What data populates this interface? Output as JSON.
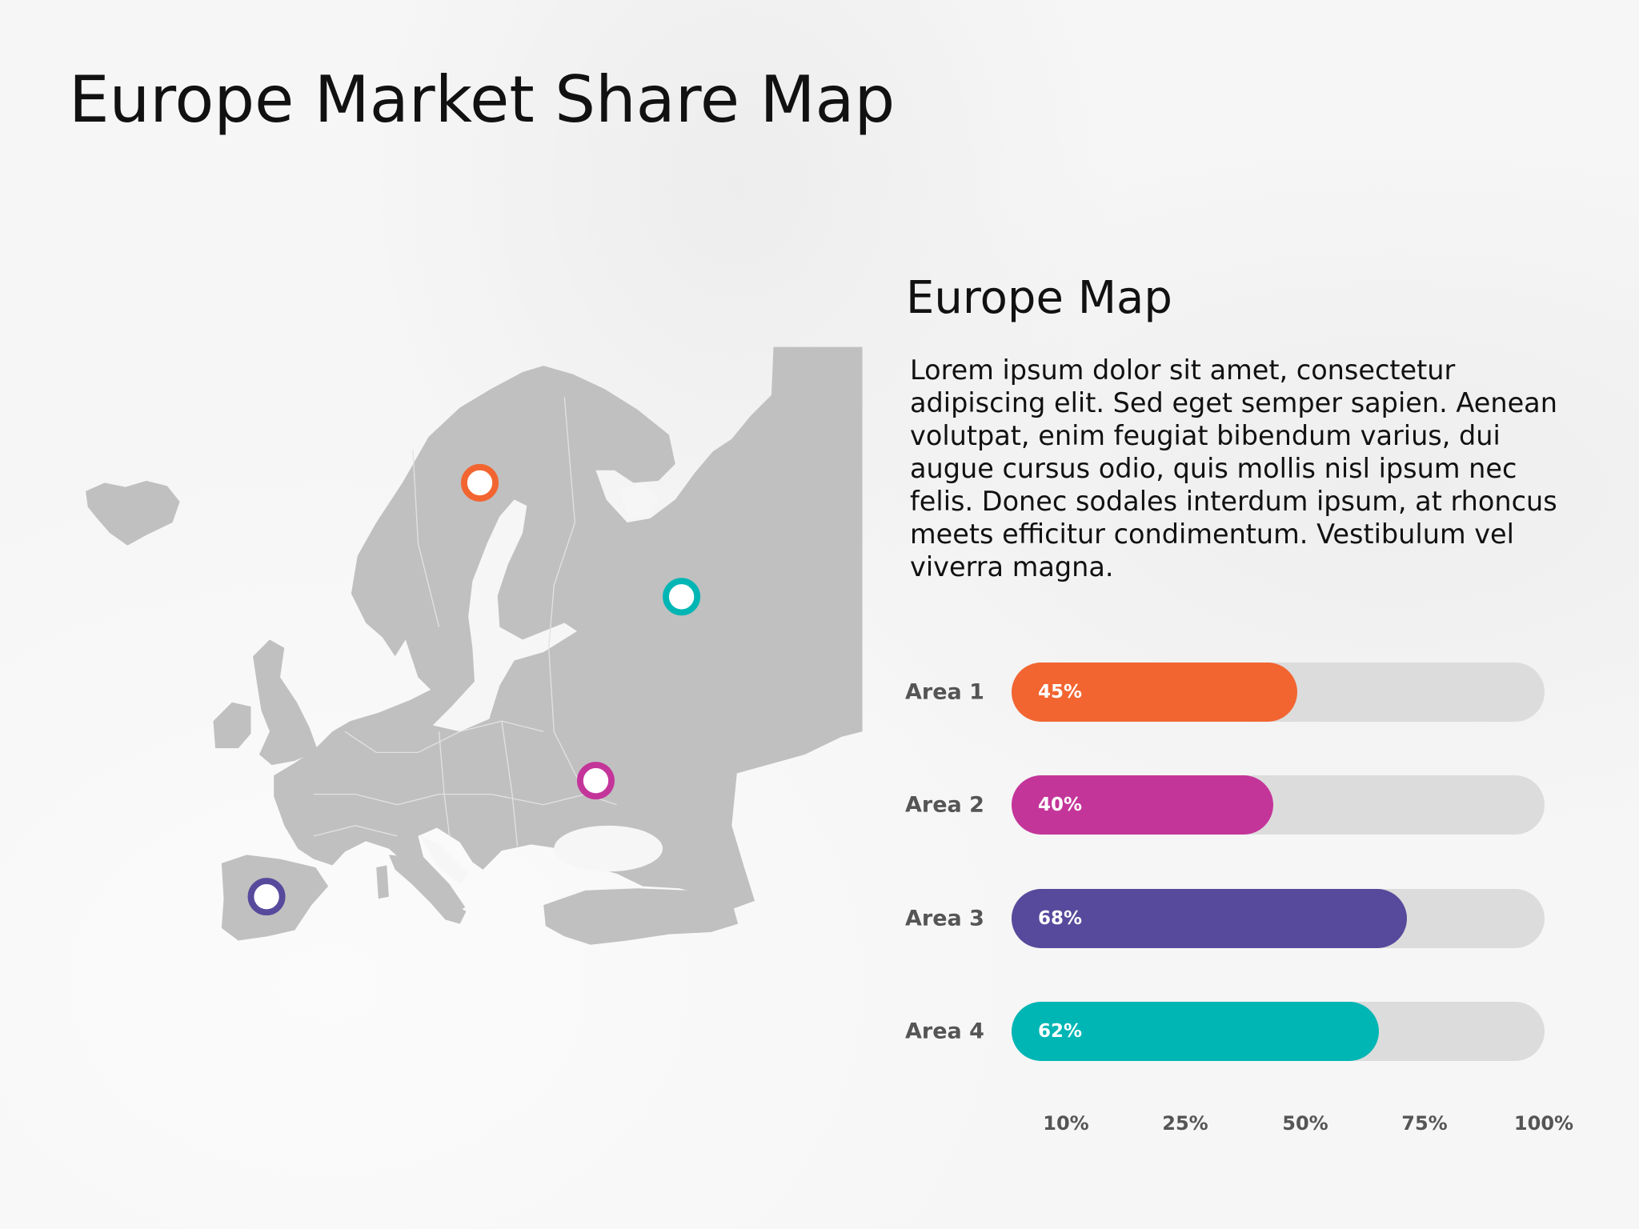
{
  "title": "Europe Market Share Map",
  "section": {
    "title": "Europe Map",
    "body": "Lorem ipsum dolor sit amet, consectetur adipiscing elit. Sed eget semper sapien. Aenean volutpat, enim feugiat bibendum varius, dui augue cursus odio, quis mollis nisl ipsum nec felis. Donec sodales interdum ipsum, at rhoncus meets efficitur condimentum. Vestibulum vel viverra magna."
  },
  "map": {
    "land_color": "#c0c0c0",
    "pins": [
      {
        "area": "Area 1",
        "location": "Sweden",
        "color": "#f26531"
      },
      {
        "area": "Area 4",
        "location": "Russia",
        "color": "#00b6b4"
      },
      {
        "area": "Area 2",
        "location": "Ukraine",
        "color": "#c4359a"
      },
      {
        "area": "Area 3",
        "location": "Spain",
        "color": "#574a9c"
      }
    ]
  },
  "chart_data": {
    "type": "bar",
    "orientation": "horizontal",
    "categories": [
      "Area 1",
      "Area 2",
      "Area 3",
      "Area 4"
    ],
    "values": [
      45,
      40,
      68,
      62
    ],
    "value_labels": [
      "45%",
      "40%",
      "68%",
      "62%"
    ],
    "colors": [
      "#f26531",
      "#c4359a",
      "#574a9c",
      "#00b6b4"
    ],
    "track_color": "#dcdcdc",
    "x_ticks": [
      10,
      25,
      50,
      75,
      100
    ],
    "x_tick_labels": [
      "10%",
      "25%",
      "50%",
      "75%",
      "100%"
    ],
    "xlim": [
      0,
      100
    ],
    "grid": false,
    "legend": "none"
  }
}
